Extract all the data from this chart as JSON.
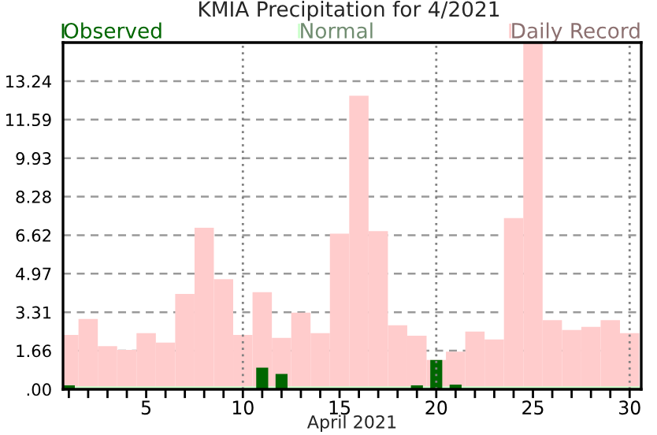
{
  "chart_data": {
    "type": "bar",
    "title": "KMIA Precipitation for 4/2021",
    "xlabel": "April 2021",
    "x": [
      1,
      2,
      3,
      4,
      5,
      6,
      7,
      8,
      9,
      10,
      11,
      12,
      13,
      14,
      15,
      16,
      17,
      18,
      19,
      20,
      21,
      22,
      23,
      24,
      25,
      26,
      27,
      28,
      29,
      30
    ],
    "series": [
      {
        "name": "Observed",
        "color": "#006600",
        "values": [
          0.17,
          0,
          0,
          0,
          0,
          0,
          0,
          0,
          0,
          0,
          0.93,
          0.66,
          0,
          0,
          0,
          0,
          0,
          0,
          0.17,
          1.26,
          0.2,
          0,
          0,
          0,
          0,
          0,
          0,
          0,
          0,
          0
        ]
      },
      {
        "name": "Daily Record",
        "color": "#ffcccc",
        "values": [
          2.34,
          3.02,
          1.85,
          1.69,
          2.41,
          2.01,
          4.1,
          6.94,
          4.73,
          2.34,
          4.17,
          2.21,
          3.29,
          2.41,
          6.69,
          12.61,
          6.8,
          2.75,
          2.3,
          1.26,
          1.62,
          2.48,
          2.14,
          7.36,
          14.9,
          2.97,
          2.55,
          2.68,
          2.97,
          2.41
        ]
      }
    ],
    "bands": [
      {
        "axis": "y",
        "from": 0,
        "to": 0.13,
        "label": "Normal",
        "color": "#ccffcc"
      }
    ],
    "legend": "top",
    "xlim": [
      0.7,
      30.6
    ],
    "xticks": [
      {
        "value": 1,
        "label": null
      },
      {
        "value": 2,
        "label": null
      },
      {
        "value": 3,
        "label": null
      },
      {
        "value": 4,
        "label": null
      },
      5,
      {
        "value": 6,
        "label": null
      },
      {
        "value": 7,
        "label": null
      },
      {
        "value": 8,
        "label": null
      },
      {
        "value": 9,
        "label": null
      },
      10,
      {
        "value": 11,
        "label": null
      },
      {
        "value": 12,
        "label": null
      },
      {
        "value": 13,
        "label": null
      },
      {
        "value": 14,
        "label": null
      },
      15,
      {
        "value": 16,
        "label": null
      },
      {
        "value": 17,
        "label": null
      },
      {
        "value": 18,
        "label": null
      },
      {
        "value": 19,
        "label": null
      },
      20,
      {
        "value": 21,
        "label": null
      },
      {
        "value": 22,
        "label": null
      },
      {
        "value": 23,
        "label": null
      },
      {
        "value": 24,
        "label": null
      },
      25,
      {
        "value": 26,
        "label": null
      },
      {
        "value": 27,
        "label": null
      },
      {
        "value": 28,
        "label": null
      },
      {
        "value": 29,
        "label": null
      },
      30
    ],
    "ylim": [
      0,
      14.9
    ],
    "yticks": [
      {
        "value": 0,
        "label": ".00"
      },
      1.66,
      3.31,
      4.97,
      6.62,
      8.28,
      9.93,
      11.59,
      13.24
    ],
    "grid": "y",
    "ref_lines": [
      {
        "axis": "x",
        "value": 10,
        "line_style": "dotted",
        "color": "#808080"
      },
      {
        "axis": "x",
        "value": 20,
        "line_style": "dotted",
        "color": "#808080"
      },
      {
        "axis": "x",
        "value": 30,
        "line_style": "dotted",
        "color": "#808080"
      }
    ]
  }
}
